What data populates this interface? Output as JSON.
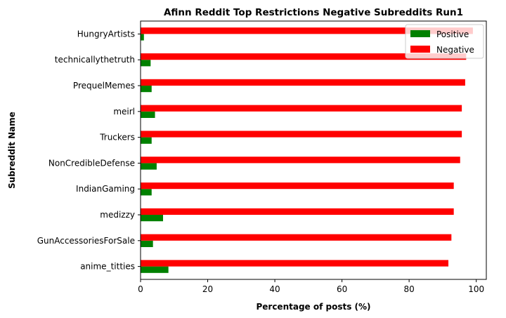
{
  "chart_data": {
    "type": "bar",
    "orientation": "horizontal",
    "title": "Afinn Reddit Top Restrictions Negative Subreddits Run1",
    "xlabel": "Percentage of posts (%)",
    "ylabel": "Subreddit Name",
    "xlim": [
      0,
      103
    ],
    "xticks": [
      0,
      20,
      40,
      60,
      80,
      100
    ],
    "grid": false,
    "legend_position": "top-right",
    "categories": [
      "HungryArtists",
      "technicallythetruth",
      "PrequelMemes",
      "meirl",
      "Truckers",
      "NonCredibleDefense",
      "IndianGaming",
      "medizzy",
      "GunAccessoriesForSale",
      "anime_titties"
    ],
    "series": [
      {
        "name": "Positive",
        "color": "#008000",
        "values": [
          1.0,
          3.0,
          3.3,
          4.3,
          3.3,
          4.8,
          3.3,
          6.7,
          3.7,
          8.3
        ]
      },
      {
        "name": "Negative",
        "color": "#ff0000",
        "values": [
          99.0,
          97.0,
          96.7,
          95.7,
          95.7,
          95.2,
          93.3,
          93.3,
          92.6,
          91.7
        ]
      }
    ]
  }
}
